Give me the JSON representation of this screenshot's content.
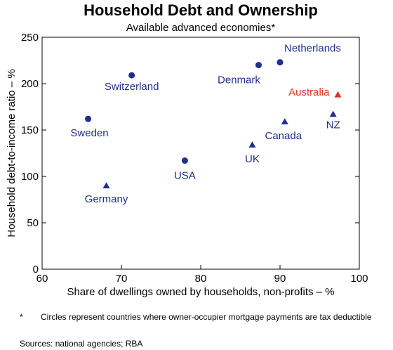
{
  "chart_data": {
    "type": "scatter",
    "title": "Household Debt and Ownership",
    "subtitle": "Available advanced economies*",
    "xlabel": "Share of dwellings owned by households, non-profits – %",
    "ylabel": "Household debt-to-income ratio – %",
    "xlim": [
      60,
      100
    ],
    "ylim": [
      0,
      250
    ],
    "x_ticks": [
      "60",
      "70",
      "80",
      "90",
      "100"
    ],
    "y_ticks": [
      "0",
      "50",
      "100",
      "150",
      "200",
      "250"
    ],
    "grid": false,
    "legend": "none",
    "points": [
      {
        "label": "Netherlands",
        "x": 90.0,
        "y": 223,
        "marker": "circle",
        "color": "#1f2f8f"
      },
      {
        "label": "Denmark",
        "x": 87.3,
        "y": 220,
        "marker": "circle",
        "color": "#1f2f8f"
      },
      {
        "label": "Switzerland",
        "x": 71.3,
        "y": 209,
        "marker": "circle",
        "color": "#1f2f8f"
      },
      {
        "label": "Australia",
        "x": 97.3,
        "y": 188,
        "marker": "triangle",
        "color": "#e0302a"
      },
      {
        "label": "NZ",
        "x": 96.7,
        "y": 167,
        "marker": "triangle",
        "color": "#1f2f8f"
      },
      {
        "label": "Sweden",
        "x": 65.8,
        "y": 162,
        "marker": "circle",
        "color": "#1f2f8f"
      },
      {
        "label": "Canada",
        "x": 90.6,
        "y": 159,
        "marker": "triangle",
        "color": "#1f2f8f"
      },
      {
        "label": "UK",
        "x": 86.5,
        "y": 134,
        "marker": "triangle",
        "color": "#1f2f8f"
      },
      {
        "label": "USA",
        "x": 78.0,
        "y": 117,
        "marker": "circle",
        "color": "#1f2f8f"
      },
      {
        "label": "Germany",
        "x": 68.1,
        "y": 90,
        "marker": "triangle",
        "color": "#1f2f8f"
      }
    ]
  },
  "footnote": {
    "symbol": "*",
    "text": "Circles represent countries where owner-occupier mortgage payments are tax deductible"
  },
  "sources": "Sources: national agencies; RBA"
}
